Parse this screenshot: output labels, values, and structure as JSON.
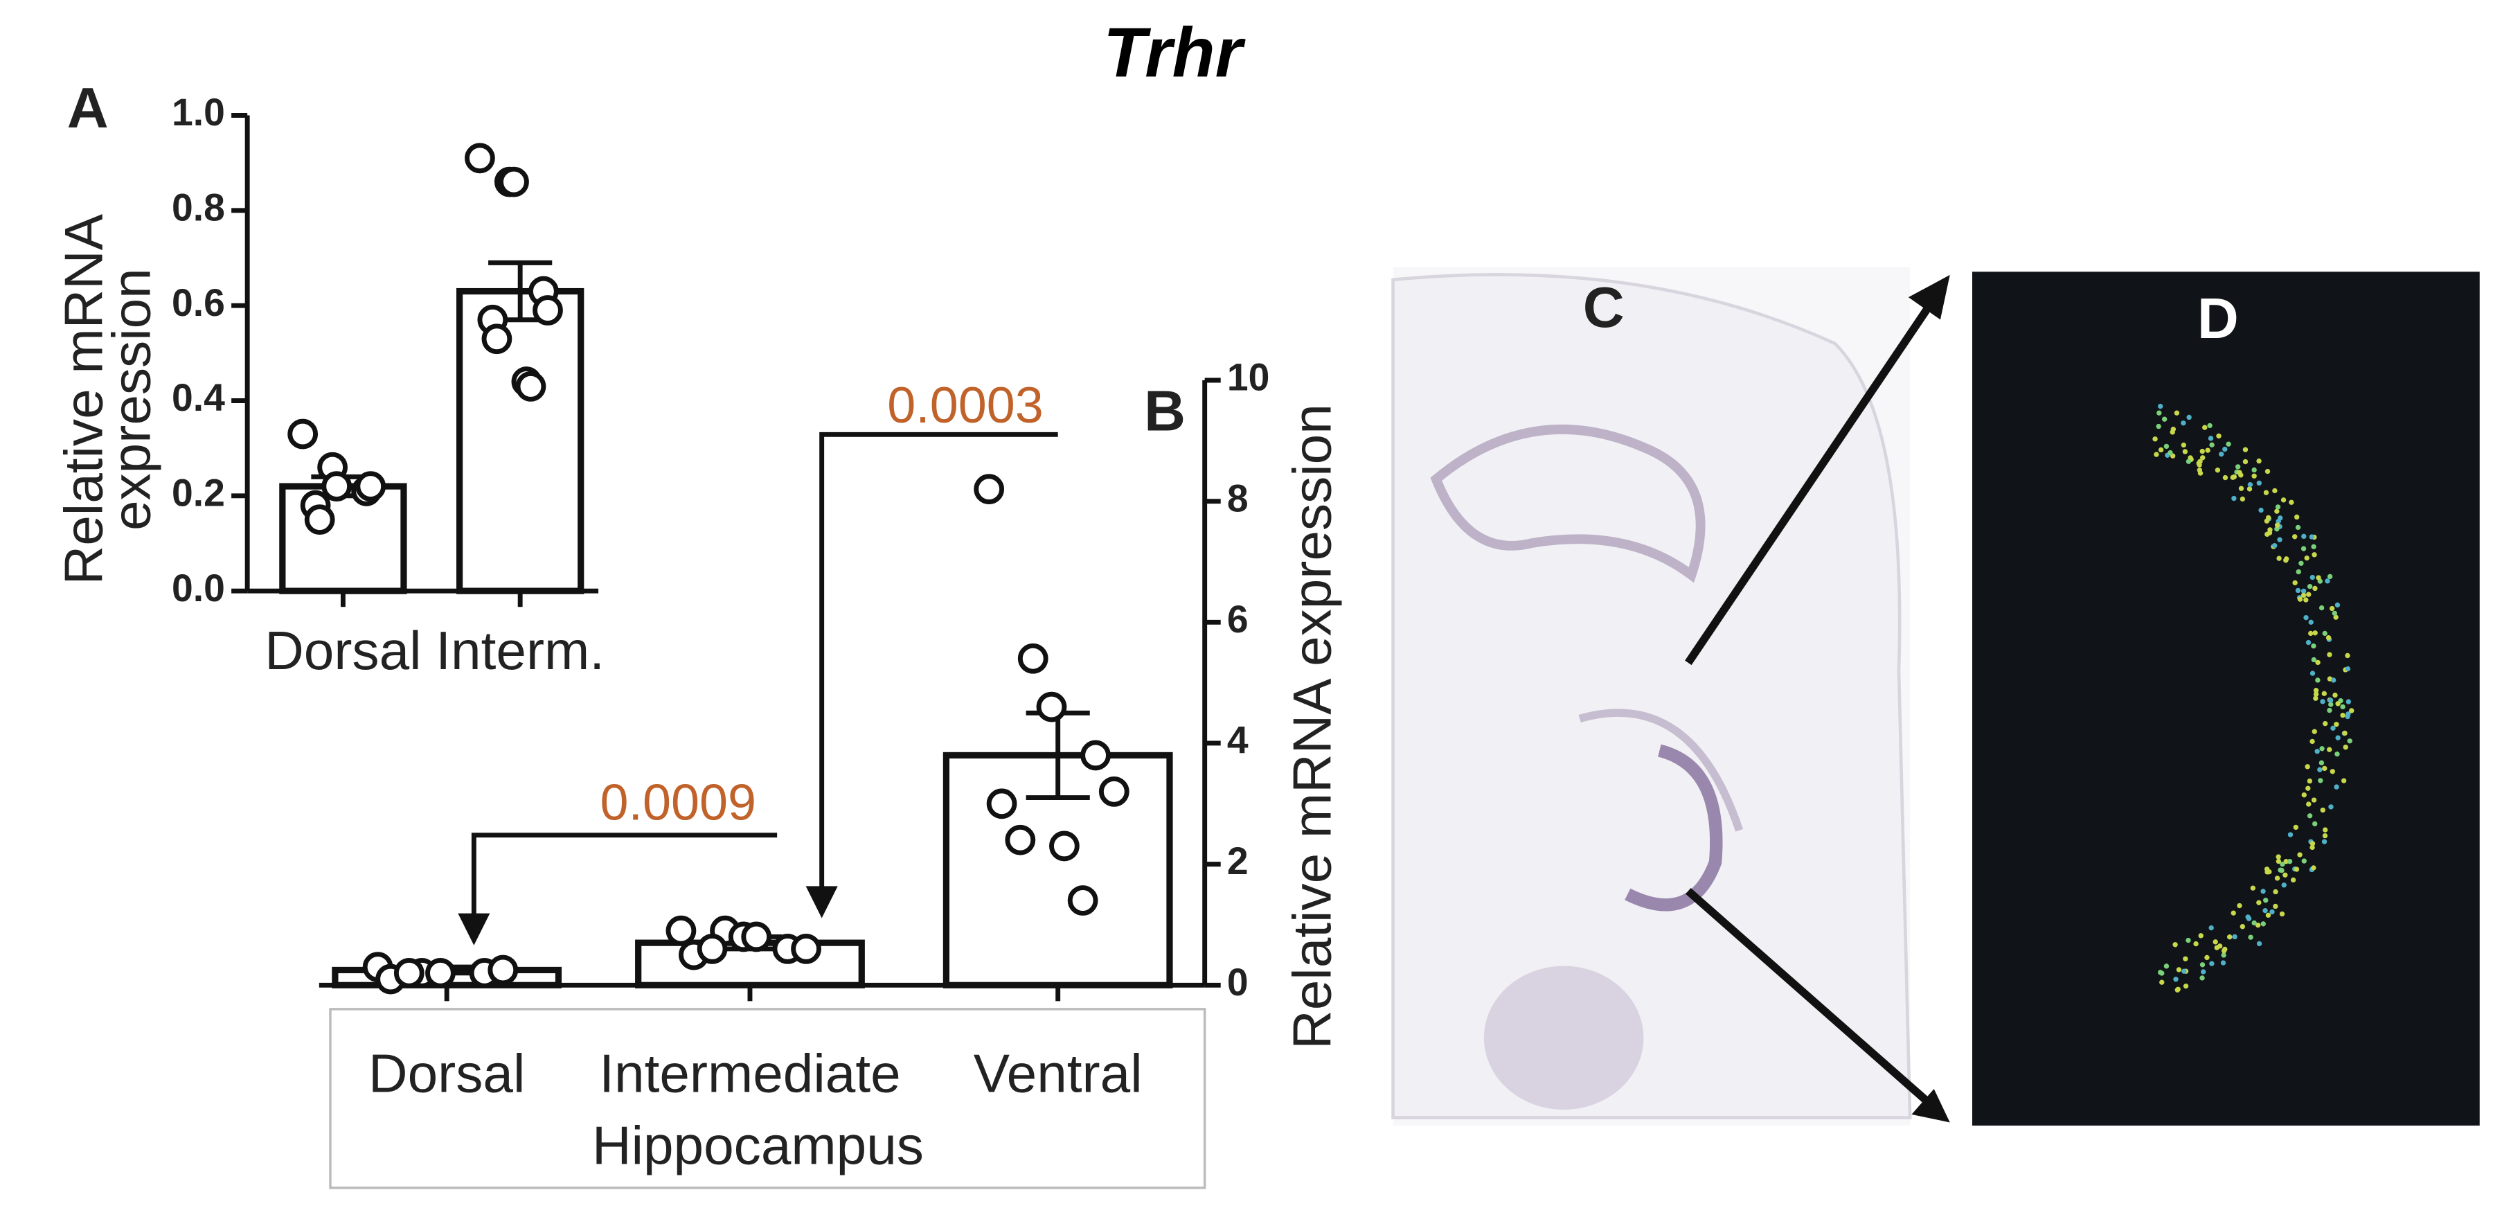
{
  "title": "Trhr",
  "chart_data": [
    {
      "type": "bar",
      "panel_label": "A",
      "ylabel": [
        "Relative mRNA",
        "expression"
      ],
      "categories": [
        "Dorsal",
        "Interm."
      ],
      "values": [
        0.22,
        0.63
      ],
      "errors": [
        0.02,
        0.06
      ],
      "points": [
        [
          0.33,
          0.26,
          0.22,
          0.21,
          0.22,
          0.18,
          0.15
        ],
        [
          0.91,
          0.86,
          0.86,
          0.63,
          0.59,
          0.57,
          0.53,
          0.44,
          0.43
        ]
      ],
      "color": "#ffffff",
      "ylim": [
        0,
        1
      ],
      "yticks": [
        {
          "value": 0,
          "label": "0.0"
        },
        0.2,
        0.4,
        0.6,
        0.8,
        {
          "value": 1,
          "label": "1.0"
        }
      ]
    },
    {
      "type": "bar",
      "panel_label": "B",
      "ylabel": "Relative mRNA expression",
      "xlabel": "Hippocampus",
      "categories": [
        "Dorsal",
        "Intermediate",
        "Ventral"
      ],
      "values": [
        0.25,
        0.7,
        3.8
      ],
      "errors": [
        0.05,
        0.1,
        0.7
      ],
      "points": [
        [
          0.3,
          0.2,
          0.2,
          0.2,
          0.25,
          0.1,
          0.2
        ],
        [
          0.9,
          0.9,
          0.8,
          0.6,
          0.6,
          0.5,
          0.6,
          0.8
        ],
        [
          8.2,
          5.4,
          4.6,
          3.8,
          3.2,
          3.0,
          2.4,
          2.3,
          1.4
        ]
      ],
      "color": "#ffffff",
      "ylim": [
        0,
        10
      ],
      "yticks": [
        0,
        2,
        4,
        6,
        8,
        10
      ],
      "annotations": [
        {
          "text": "0.0009",
          "color": "#c0622a"
        },
        {
          "text": "0.0003",
          "color": "#c0622a"
        }
      ]
    }
  ],
  "images": [
    {
      "label": "C"
    },
    {
      "label": "D"
    }
  ]
}
